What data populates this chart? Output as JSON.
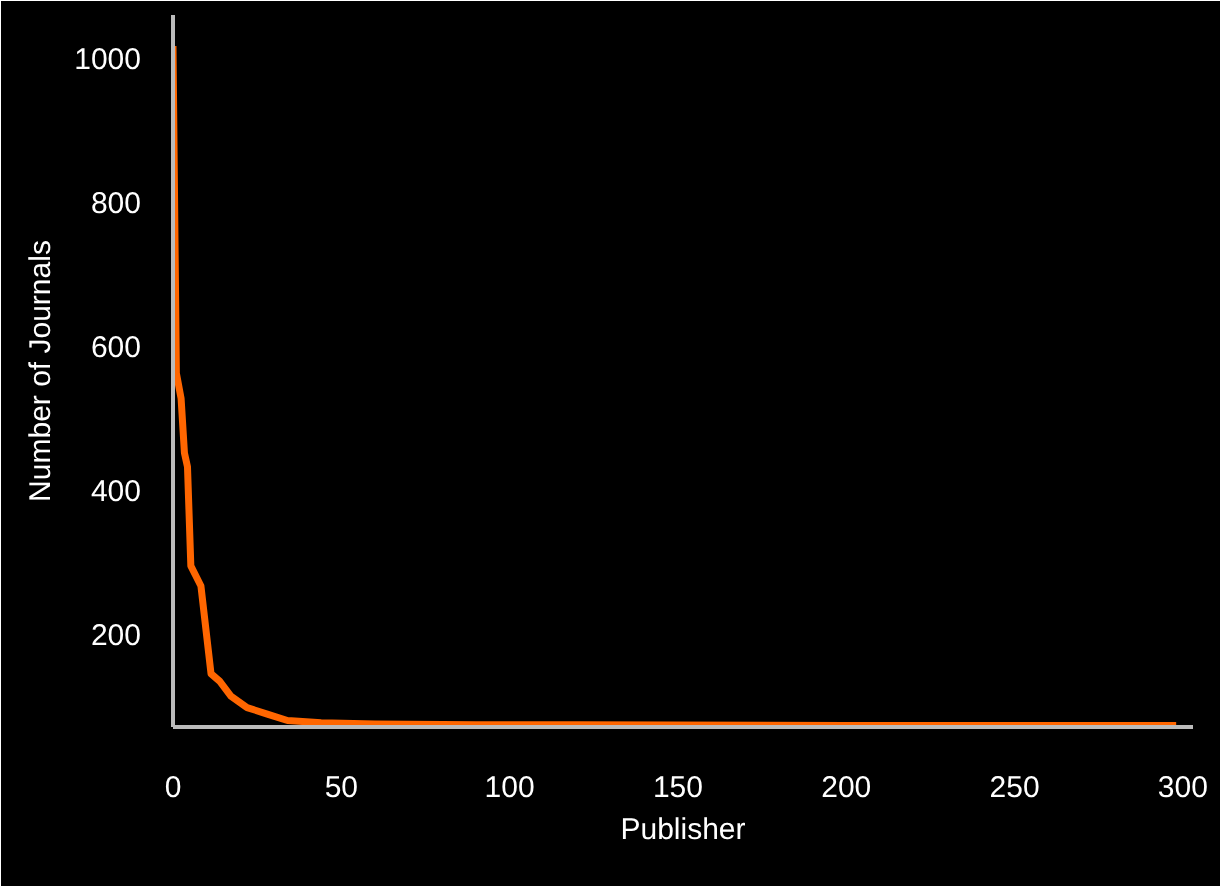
{
  "chart_data": {
    "type": "line",
    "xlabel": "Publisher",
    "ylabel": "Number of Journals",
    "x": [
      0,
      1,
      2.4,
      3.4,
      4.3,
      5.3,
      8.3,
      11.3,
      13.8,
      17.2,
      22,
      28,
      34,
      44,
      60,
      90,
      120,
      200,
      298
    ],
    "series": [
      {
        "color": "#ff6600",
        "values": [
          1017,
          562,
          527,
          451,
          432,
          294,
          266,
          144,
          134,
          113,
          97,
          88,
          79,
          76,
          74,
          73,
          73,
          72,
          72
        ]
      }
    ],
    "xlim": [
      0,
      303
    ],
    "ylim": [
      70,
      1060
    ],
    "xticks": [
      0,
      50,
      100,
      150,
      200,
      250,
      300
    ],
    "yticks": [
      200,
      400,
      600,
      800,
      1000
    ],
    "grid": false,
    "marker": "none",
    "line_style": "solid"
  }
}
